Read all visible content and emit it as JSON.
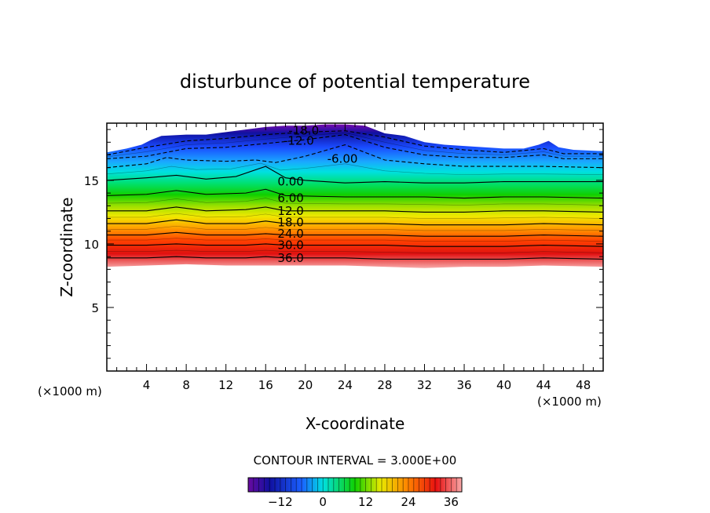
{
  "chart_data": {
    "type": "contour",
    "title": "disturbunce of potential temperature",
    "xlabel": "X-coordinate",
    "ylabel": "Z-coordinate",
    "x_unit": "(×1000 m)",
    "y_unit": "(×1000 m)",
    "xlim": [
      0,
      50
    ],
    "ylim": [
      0,
      19.5
    ],
    "x_ticks": [
      4,
      8,
      12,
      16,
      20,
      24,
      28,
      32,
      36,
      40,
      44,
      48
    ],
    "y_ticks": [
      5,
      10,
      15
    ],
    "contour_interval_text": "CONTOUR INTERVAL = 3.000E+00",
    "contour_interval": 3.0,
    "value_range": [
      -21,
      39
    ],
    "colorbar_ticks": [
      -12,
      0,
      12,
      24,
      36
    ],
    "top_boundary": [
      [
        0,
        17.2
      ],
      [
        2,
        17.5
      ],
      [
        3.5,
        17.8
      ],
      [
        4.5,
        18.2
      ],
      [
        5.5,
        18.5
      ],
      [
        8,
        18.6
      ],
      [
        10,
        18.6
      ],
      [
        12,
        18.8
      ],
      [
        14,
        19.0
      ],
      [
        16,
        19.2
      ],
      [
        18,
        19.3
      ],
      [
        20,
        19.3
      ],
      [
        22,
        19.4
      ],
      [
        24,
        19.4
      ],
      [
        26,
        19.3
      ],
      [
        28,
        18.7
      ],
      [
        30,
        18.5
      ],
      [
        32,
        18.0
      ],
      [
        34,
        17.8
      ],
      [
        36,
        17.7
      ],
      [
        38,
        17.6
      ],
      [
        40,
        17.5
      ],
      [
        42,
        17.5
      ],
      [
        43.5,
        17.8
      ],
      [
        44.5,
        18.1
      ],
      [
        45.5,
        17.6
      ],
      [
        47,
        17.4
      ],
      [
        50,
        17.3
      ]
    ],
    "contour_lines": [
      {
        "value": -18.0,
        "label": "-18.0",
        "label_x": 18.3,
        "label_y": 18.9,
        "points": [
          [
            0,
            17.0
          ],
          [
            4,
            17.6
          ],
          [
            8,
            18.1
          ],
          [
            12,
            18.3
          ],
          [
            16,
            18.6
          ],
          [
            20,
            18.8
          ],
          [
            24,
            18.9
          ],
          [
            28,
            18.4
          ],
          [
            32,
            17.7
          ],
          [
            36,
            17.4
          ],
          [
            40,
            17.2
          ],
          [
            44,
            17.5
          ],
          [
            46,
            17.1
          ],
          [
            50,
            17.1
          ]
        ]
      },
      {
        "value": -12.0,
        "label": "-12.0",
        "label_x": 17.8,
        "label_y": 18.1,
        "points": [
          [
            0,
            16.7
          ],
          [
            4,
            16.9
          ],
          [
            8,
            17.5
          ],
          [
            12,
            17.6
          ],
          [
            16,
            17.9
          ],
          [
            20,
            18.2
          ],
          [
            24,
            18.6
          ],
          [
            28,
            17.6
          ],
          [
            32,
            17.0
          ],
          [
            36,
            16.8
          ],
          [
            40,
            16.8
          ],
          [
            44,
            17.0
          ],
          [
            46,
            16.7
          ],
          [
            50,
            16.7
          ]
        ]
      },
      {
        "value": -6.0,
        "label": "-6.00",
        "label_x": 22.2,
        "label_y": 16.7,
        "points": [
          [
            0,
            16.0
          ],
          [
            4,
            16.3
          ],
          [
            6,
            16.8
          ],
          [
            8,
            16.6
          ],
          [
            12,
            16.5
          ],
          [
            15,
            16.6
          ],
          [
            17,
            16.4
          ],
          [
            20,
            16.9
          ],
          [
            24,
            17.8
          ],
          [
            28,
            16.6
          ],
          [
            32,
            16.3
          ],
          [
            36,
            16.1
          ],
          [
            40,
            16.1
          ],
          [
            44,
            16.1
          ],
          [
            50,
            16.0
          ]
        ]
      },
      {
        "value": 0.0,
        "label": "0.00",
        "label_x": 17.2,
        "label_y": 14.9,
        "points": [
          [
            0,
            15.0
          ],
          [
            4,
            15.2
          ],
          [
            7,
            15.4
          ],
          [
            10,
            15.1
          ],
          [
            13,
            15.3
          ],
          [
            16,
            16.1
          ],
          [
            18,
            15.2
          ],
          [
            20,
            15.0
          ],
          [
            24,
            14.8
          ],
          [
            28,
            14.9
          ],
          [
            32,
            14.8
          ],
          [
            36,
            14.8
          ],
          [
            40,
            14.9
          ],
          [
            44,
            14.9
          ],
          [
            50,
            14.9
          ]
        ]
      },
      {
        "value": 6.0,
        "label": "6.00",
        "label_x": 17.2,
        "label_y": 13.6,
        "points": [
          [
            0,
            13.8
          ],
          [
            4,
            13.9
          ],
          [
            7,
            14.2
          ],
          [
            10,
            13.9
          ],
          [
            14,
            14.0
          ],
          [
            16,
            14.3
          ],
          [
            18,
            13.8
          ],
          [
            24,
            13.7
          ],
          [
            28,
            13.7
          ],
          [
            32,
            13.7
          ],
          [
            36,
            13.6
          ],
          [
            40,
            13.7
          ],
          [
            44,
            13.7
          ],
          [
            50,
            13.6
          ]
        ]
      },
      {
        "value": 12.0,
        "label": "12.0",
        "label_x": 17.2,
        "label_y": 12.6,
        "points": [
          [
            0,
            12.6
          ],
          [
            4,
            12.6
          ],
          [
            7,
            12.9
          ],
          [
            10,
            12.6
          ],
          [
            14,
            12.7
          ],
          [
            16,
            12.9
          ],
          [
            18,
            12.6
          ],
          [
            24,
            12.6
          ],
          [
            28,
            12.6
          ],
          [
            32,
            12.5
          ],
          [
            36,
            12.5
          ],
          [
            40,
            12.6
          ],
          [
            44,
            12.6
          ],
          [
            50,
            12.5
          ]
        ]
      },
      {
        "value": 18.0,
        "label": "18.0",
        "label_x": 17.2,
        "label_y": 11.7,
        "points": [
          [
            0,
            11.6
          ],
          [
            4,
            11.6
          ],
          [
            7,
            11.9
          ],
          [
            10,
            11.6
          ],
          [
            14,
            11.6
          ],
          [
            16,
            11.8
          ],
          [
            18,
            11.6
          ],
          [
            24,
            11.6
          ],
          [
            28,
            11.6
          ],
          [
            32,
            11.5
          ],
          [
            36,
            11.5
          ],
          [
            40,
            11.5
          ],
          [
            44,
            11.6
          ],
          [
            50,
            11.5
          ]
        ]
      },
      {
        "value": 24.0,
        "label": "24.0",
        "label_x": 17.2,
        "label_y": 10.8,
        "points": [
          [
            0,
            10.7
          ],
          [
            4,
            10.7
          ],
          [
            7,
            10.9
          ],
          [
            10,
            10.7
          ],
          [
            14,
            10.7
          ],
          [
            16,
            10.8
          ],
          [
            18,
            10.7
          ],
          [
            24,
            10.7
          ],
          [
            28,
            10.7
          ],
          [
            32,
            10.6
          ],
          [
            36,
            10.6
          ],
          [
            40,
            10.6
          ],
          [
            44,
            10.7
          ],
          [
            50,
            10.6
          ]
        ]
      },
      {
        "value": 30.0,
        "label": "30.0",
        "label_x": 17.2,
        "label_y": 9.9,
        "points": [
          [
            0,
            9.9
          ],
          [
            4,
            9.9
          ],
          [
            7,
            10.0
          ],
          [
            10,
            9.9
          ],
          [
            14,
            9.9
          ],
          [
            16,
            10.0
          ],
          [
            18,
            9.9
          ],
          [
            24,
            9.9
          ],
          [
            28,
            9.9
          ],
          [
            32,
            9.8
          ],
          [
            36,
            9.8
          ],
          [
            40,
            9.8
          ],
          [
            44,
            9.9
          ],
          [
            50,
            9.8
          ]
        ]
      },
      {
        "value": 36.0,
        "label": "36.0",
        "label_x": 17.2,
        "label_y": 8.9,
        "points": [
          [
            0,
            8.9
          ],
          [
            4,
            8.9
          ],
          [
            7,
            9.0
          ],
          [
            10,
            8.9
          ],
          [
            14,
            8.9
          ],
          [
            16,
            9.0
          ],
          [
            18,
            8.9
          ],
          [
            24,
            8.9
          ],
          [
            28,
            8.8
          ],
          [
            32,
            8.8
          ],
          [
            36,
            8.8
          ],
          [
            40,
            8.8
          ],
          [
            44,
            8.9
          ],
          [
            50,
            8.8
          ]
        ]
      }
    ],
    "bottom_boundary": [
      [
        0,
        8.2
      ],
      [
        4,
        8.3
      ],
      [
        8,
        8.4
      ],
      [
        12,
        8.3
      ],
      [
        16,
        8.3
      ],
      [
        20,
        8.3
      ],
      [
        24,
        8.3
      ],
      [
        28,
        8.2
      ],
      [
        32,
        8.1
      ],
      [
        36,
        8.2
      ],
      [
        40,
        8.2
      ],
      [
        44,
        8.3
      ],
      [
        50,
        8.2
      ]
    ],
    "colors": {
      "purple": "#7a0ab0",
      "navy": "#1010a0",
      "blue": "#1a50ff",
      "cyan": "#00e0e0",
      "green": "#00d000",
      "yellow": "#e8e800",
      "orange": "#ff8000",
      "red": "#e81010",
      "pink": "#f8a0a0"
    }
  }
}
